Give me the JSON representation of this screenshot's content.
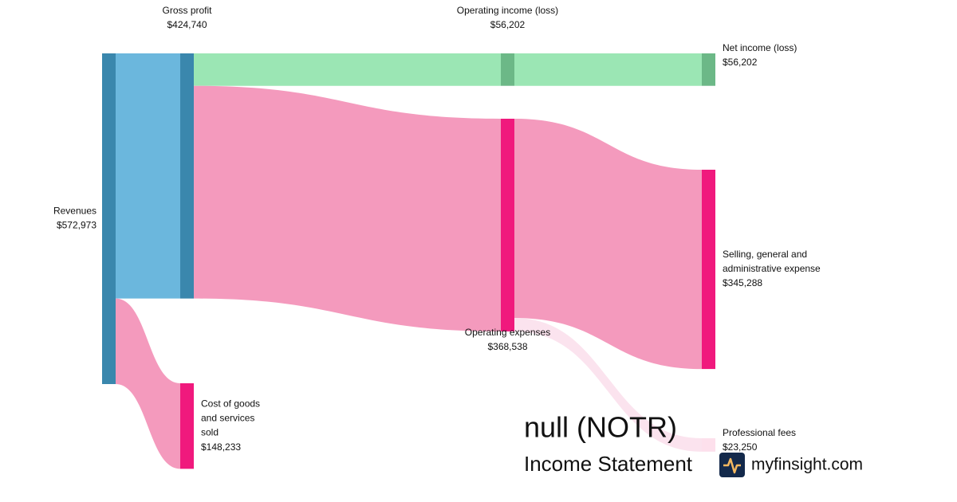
{
  "chart_data": {
    "type": "sankey",
    "title": "null (NOTR)",
    "subtitle": "Income Statement",
    "source": "myfinsight.com",
    "nodes": [
      "Revenues",
      "Gross profit",
      "Cost of goods and services sold",
      "Operating income (loss)",
      "Operating expenses",
      "Net income (loss)",
      "Selling, general and administrative expense",
      "Professional fees"
    ],
    "values": [
      572973,
      424740,
      148233,
      56202,
      368538,
      56202,
      345288,
      23250
    ],
    "value_labels": [
      "$572,973",
      "$424,740",
      "$148,233",
      "$56,202",
      "$368,538",
      "$56,202",
      "$345,288",
      "$23,250"
    ],
    "colors": [
      "#3a87ad",
      "#3a87ad",
      "#f0197d",
      "#6cb887",
      "#f0197d",
      "#6cb887",
      "#f0197d",
      "#fde0ec"
    ],
    "links": [
      {
        "source": 0,
        "target": 1,
        "color": "#6bb7dd"
      },
      {
        "source": 0,
        "target": 2,
        "color": "#f49abd"
      },
      {
        "source": 1,
        "target": 3,
        "color": "#9be6b4"
      },
      {
        "source": 1,
        "target": 4,
        "color": "#f49abd"
      },
      {
        "source": 3,
        "target": 5,
        "color": "#9be6b4"
      },
      {
        "source": 4,
        "target": 6,
        "color": "#f49abd"
      },
      {
        "source": 4,
        "target": 7,
        "color": "#fbe3ee"
      }
    ]
  }
}
